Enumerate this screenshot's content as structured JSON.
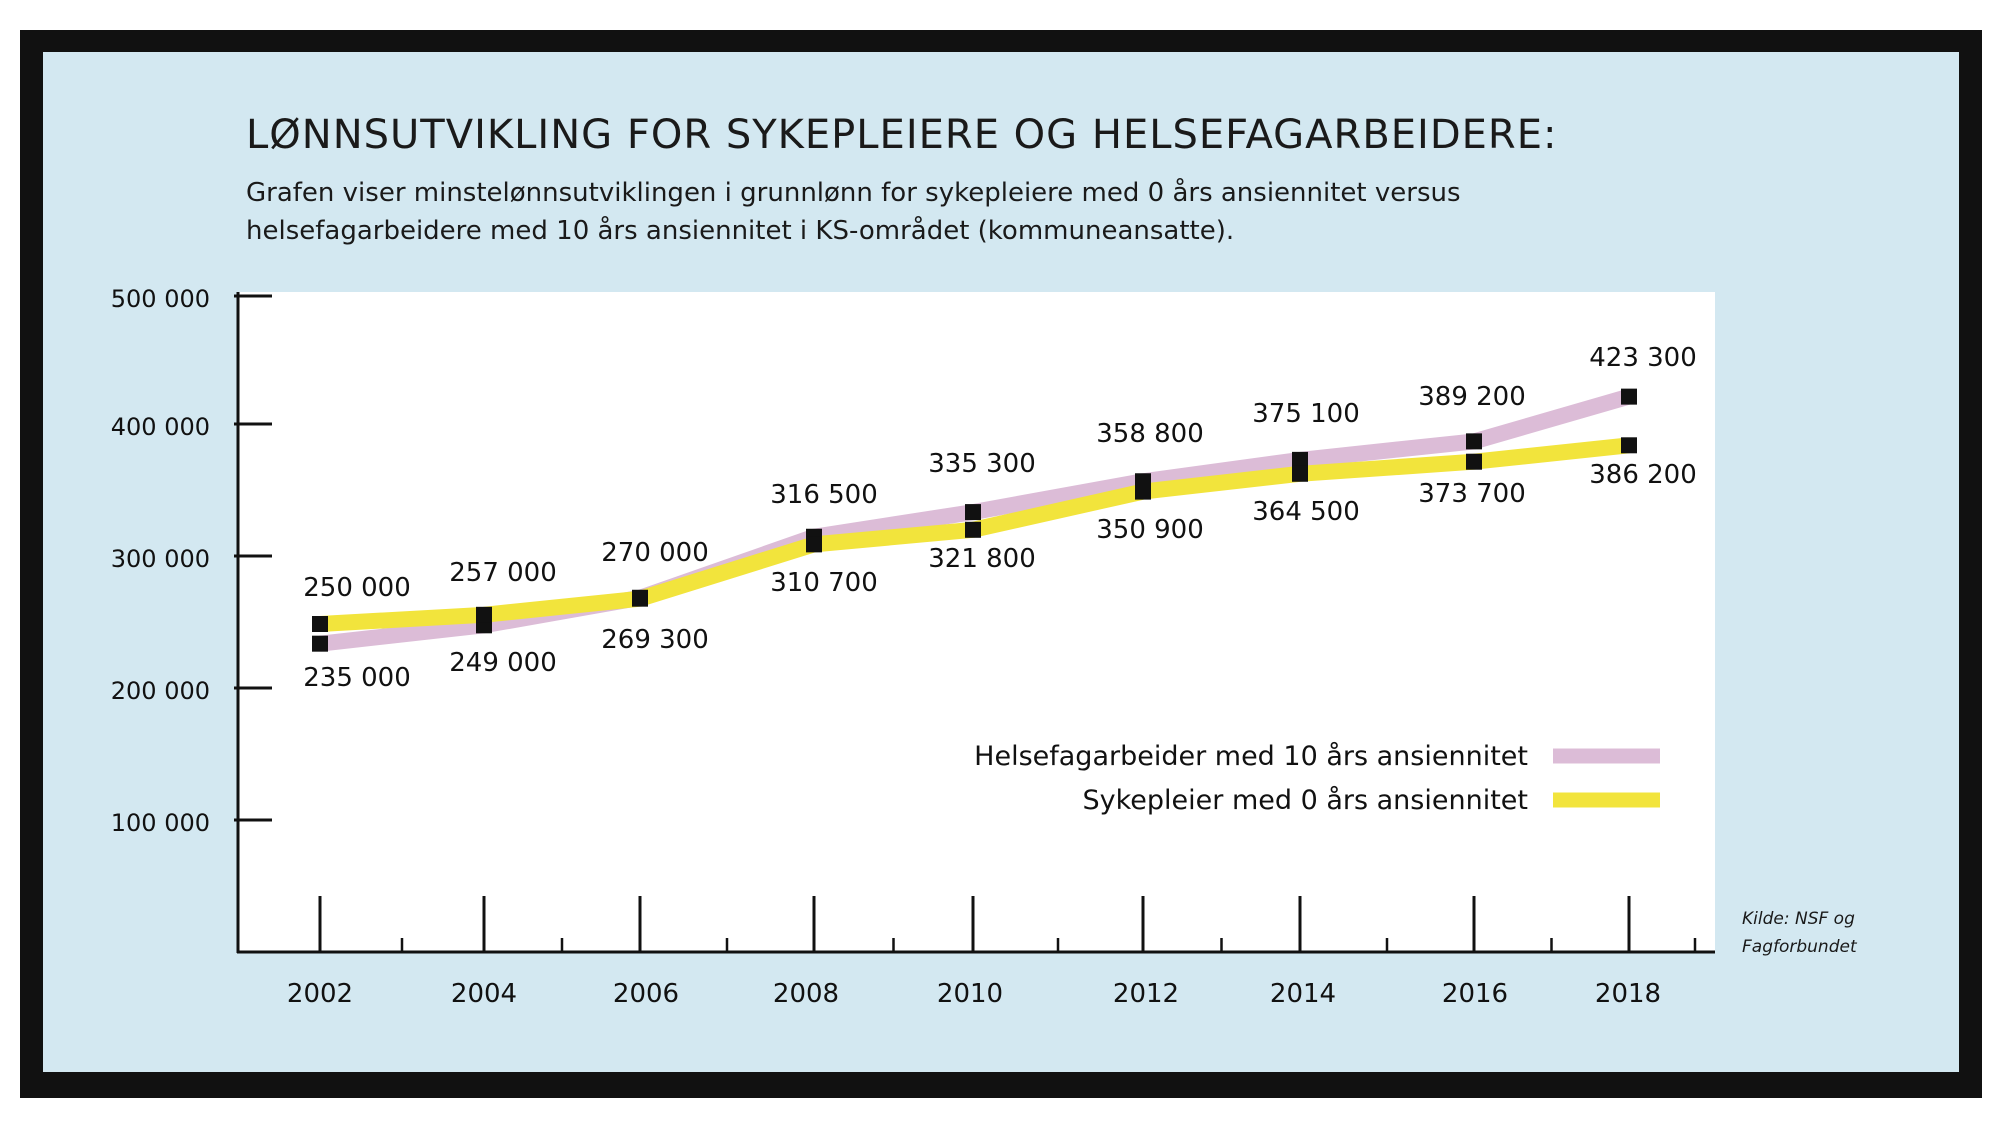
{
  "colors": {
    "frame": "#111111",
    "background": "#d3e8f1",
    "plot": "#ffffff",
    "helse": "#dcbcd7",
    "syke": "#f2e43c",
    "marker": "#111111"
  },
  "header": {
    "title": "LØNNSUTVIKLING FOR SYKEPLEIERE OG HELSEFAGARBEIDERE:",
    "subtitle_line1": "Grafen viser minstelønnsutviklingen i grunnlønn for sykepleiere med 0 års ansiennitet versus",
    "subtitle_line2": "helsefagarbeidere med 10 års ansiennitet i KS-området (kommuneansatte)."
  },
  "source": {
    "line1": "Kilde: NSF og",
    "line2": "Fagforbundet"
  },
  "chart_data": {
    "type": "line",
    "title": "LØNNSUTVIKLING FOR SYKEPLEIERE OG HELSEFAGARBEIDERE:",
    "xlabel": "",
    "ylabel": "",
    "categories": [
      "2002",
      "2004",
      "2006",
      "2008",
      "2010",
      "2012",
      "2014",
      "2016",
      "2018"
    ],
    "ylim": [
      0,
      500000
    ],
    "y_ticks": [
      100000,
      200000,
      300000,
      400000,
      500000
    ],
    "y_tick_labels": [
      "100 000",
      "200 000",
      "300 000",
      "400 000",
      "500 000"
    ],
    "grid": false,
    "legend_position": "bottom-right",
    "series": [
      {
        "name": "Helsefagarbeider med 10 års ansiennitet",
        "color": "#dcbcd7",
        "values": [
          235000,
          249000,
          270000,
          316500,
          335300,
          358800,
          375100,
          389200,
          423300
        ],
        "labels": [
          "235 000",
          "249 000",
          "270 000",
          "316 500",
          "335 300",
          "358 800",
          "375 100",
          "389 200",
          "423 300"
        ]
      },
      {
        "name": "Sykepleier med 0 års ansiennitet",
        "color": "#f2e43c",
        "values": [
          250000,
          257000,
          269300,
          310700,
          321800,
          350900,
          364500,
          373700,
          386200
        ],
        "labels": [
          "250 000",
          "257 000",
          "269 300",
          "310 700",
          "321 800",
          "350 900",
          "364 500",
          "373 700",
          "386 200"
        ]
      }
    ]
  }
}
